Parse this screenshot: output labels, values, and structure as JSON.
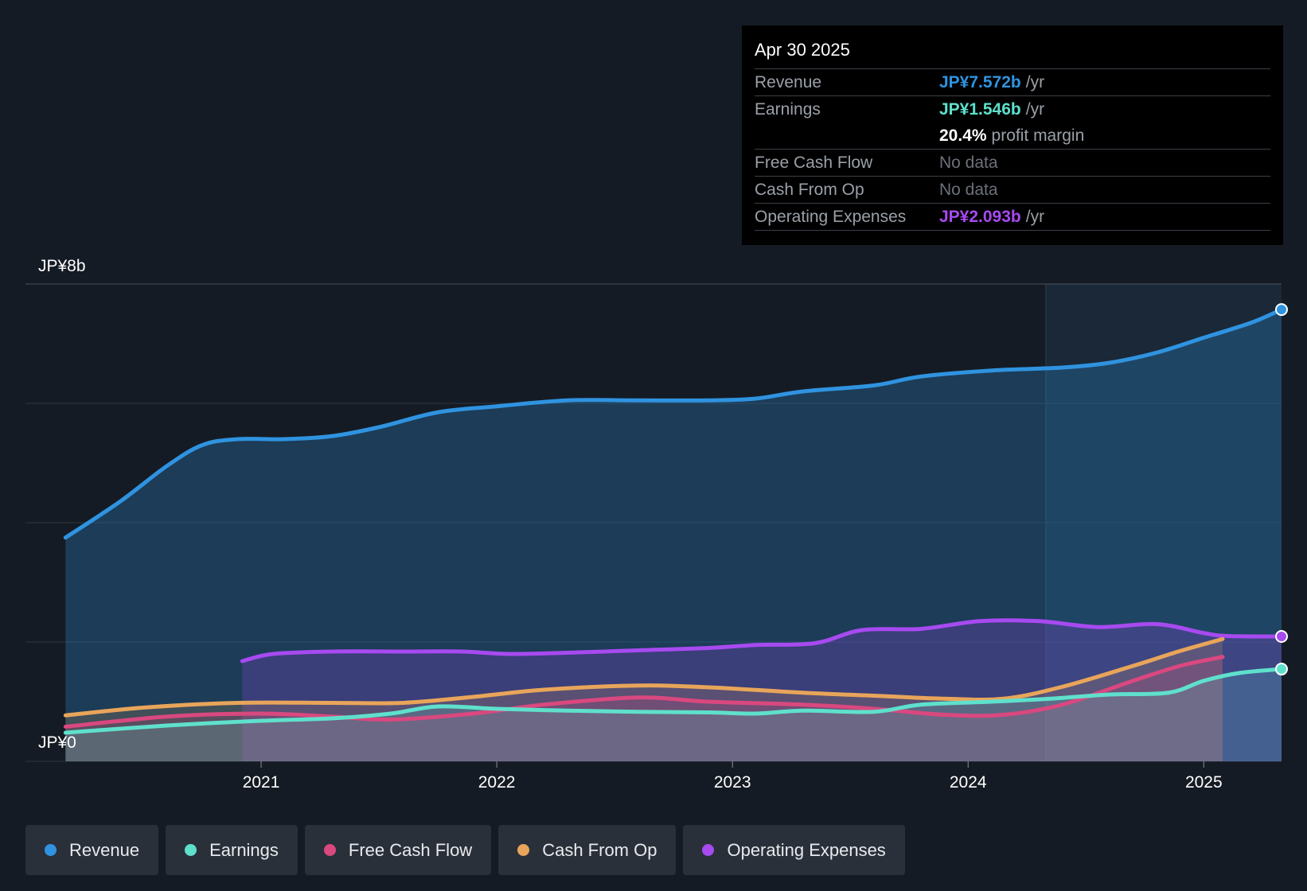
{
  "tooltip": {
    "date": "Apr 30 2025",
    "rows": [
      {
        "label": "Revenue",
        "value": "JP¥7.572b",
        "unit": "/yr",
        "color": "#2f93e0"
      },
      {
        "label": "Earnings",
        "value": "JP¥1.546b",
        "unit": "/yr",
        "color": "#5fe0cc"
      },
      {
        "label": "",
        "value": "20.4%",
        "unit": "profit margin",
        "color": "#ffffff"
      },
      {
        "label": "Free Cash Flow",
        "value": "No data"
      },
      {
        "label": "Cash From Op",
        "value": "No data"
      },
      {
        "label": "Operating Expenses",
        "value": "JP¥2.093b",
        "unit": "/yr",
        "color": "#a74af0"
      }
    ]
  },
  "legend": [
    {
      "label": "Revenue",
      "color": "#2f93e0"
    },
    {
      "label": "Earnings",
      "color": "#5fe0cc"
    },
    {
      "label": "Free Cash Flow",
      "color": "#d9487f"
    },
    {
      "label": "Cash From Op",
      "color": "#e8a55a"
    },
    {
      "label": "Operating Expenses",
      "color": "#a74af0"
    }
  ],
  "chart_data": {
    "type": "area",
    "currency": "JPY",
    "y_top_label": "JP¥8b",
    "y_bottom_label": "JP¥0",
    "ylim": [
      0,
      8
    ],
    "xlim": [
      2020.0,
      2025.33
    ],
    "x_ticks": [
      "2021",
      "2022",
      "2023",
      "2024",
      "2025"
    ],
    "x_tick_values": [
      2021,
      2022,
      2023,
      2024,
      2025
    ],
    "grid": true,
    "forecast_start": 2024.33,
    "series": [
      {
        "name": "Revenue",
        "color": "#2f93e0",
        "points": [
          [
            2020.17,
            3.75
          ],
          [
            2020.4,
            4.35
          ],
          [
            2020.6,
            4.95
          ],
          [
            2020.75,
            5.3
          ],
          [
            2020.9,
            5.4
          ],
          [
            2021.1,
            5.4
          ],
          [
            2021.3,
            5.45
          ],
          [
            2021.5,
            5.6
          ],
          [
            2021.75,
            5.85
          ],
          [
            2022.0,
            5.95
          ],
          [
            2022.3,
            6.05
          ],
          [
            2022.6,
            6.05
          ],
          [
            2022.9,
            6.05
          ],
          [
            2023.1,
            6.08
          ],
          [
            2023.3,
            6.2
          ],
          [
            2023.6,
            6.3
          ],
          [
            2023.8,
            6.45
          ],
          [
            2024.1,
            6.55
          ],
          [
            2024.4,
            6.6
          ],
          [
            2024.6,
            6.68
          ],
          [
            2024.8,
            6.85
          ],
          [
            2025.0,
            7.1
          ],
          [
            2025.2,
            7.35
          ],
          [
            2025.33,
            7.572
          ]
        ]
      },
      {
        "name": "Operating Expenses",
        "color": "#a74af0",
        "points": [
          [
            2020.92,
            1.68
          ],
          [
            2021.05,
            1.8
          ],
          [
            2021.3,
            1.84
          ],
          [
            2021.6,
            1.84
          ],
          [
            2021.85,
            1.84
          ],
          [
            2022.05,
            1.8
          ],
          [
            2022.3,
            1.82
          ],
          [
            2022.6,
            1.86
          ],
          [
            2022.9,
            1.9
          ],
          [
            2023.1,
            1.95
          ],
          [
            2023.35,
            1.98
          ],
          [
            2023.55,
            2.2
          ],
          [
            2023.8,
            2.22
          ],
          [
            2024.05,
            2.35
          ],
          [
            2024.3,
            2.35
          ],
          [
            2024.55,
            2.25
          ],
          [
            2024.8,
            2.3
          ],
          [
            2025.0,
            2.15
          ],
          [
            2025.1,
            2.1
          ],
          [
            2025.33,
            2.093
          ]
        ]
      },
      {
        "name": "Cash From Op",
        "color": "#e8a55a",
        "points": [
          [
            2020.17,
            0.77
          ],
          [
            2020.5,
            0.9
          ],
          [
            2020.9,
            0.98
          ],
          [
            2021.3,
            0.98
          ],
          [
            2021.6,
            0.98
          ],
          [
            2021.9,
            1.08
          ],
          [
            2022.2,
            1.2
          ],
          [
            2022.6,
            1.27
          ],
          [
            2022.9,
            1.24
          ],
          [
            2023.3,
            1.15
          ],
          [
            2023.6,
            1.1
          ],
          [
            2023.9,
            1.05
          ],
          [
            2024.15,
            1.05
          ],
          [
            2024.4,
            1.25
          ],
          [
            2024.7,
            1.6
          ],
          [
            2024.9,
            1.85
          ],
          [
            2025.08,
            2.05
          ]
        ]
      },
      {
        "name": "Free Cash Flow",
        "color": "#d9487f",
        "points": [
          [
            2020.17,
            0.58
          ],
          [
            2020.6,
            0.75
          ],
          [
            2021.0,
            0.8
          ],
          [
            2021.3,
            0.75
          ],
          [
            2021.55,
            0.7
          ],
          [
            2021.9,
            0.8
          ],
          [
            2022.2,
            0.95
          ],
          [
            2022.6,
            1.07
          ],
          [
            2022.9,
            1.0
          ],
          [
            2023.3,
            0.95
          ],
          [
            2023.6,
            0.88
          ],
          [
            2023.9,
            0.78
          ],
          [
            2024.15,
            0.78
          ],
          [
            2024.4,
            0.95
          ],
          [
            2024.7,
            1.35
          ],
          [
            2024.9,
            1.6
          ],
          [
            2025.08,
            1.75
          ]
        ]
      },
      {
        "name": "Earnings",
        "color": "#5fe0cc",
        "points": [
          [
            2020.17,
            0.48
          ],
          [
            2020.6,
            0.6
          ],
          [
            2021.0,
            0.68
          ],
          [
            2021.3,
            0.72
          ],
          [
            2021.55,
            0.8
          ],
          [
            2021.75,
            0.92
          ],
          [
            2022.0,
            0.88
          ],
          [
            2022.3,
            0.85
          ],
          [
            2022.6,
            0.83
          ],
          [
            2022.9,
            0.82
          ],
          [
            2023.1,
            0.8
          ],
          [
            2023.3,
            0.85
          ],
          [
            2023.6,
            0.83
          ],
          [
            2023.8,
            0.95
          ],
          [
            2024.1,
            1.0
          ],
          [
            2024.35,
            1.05
          ],
          [
            2024.6,
            1.12
          ],
          [
            2024.85,
            1.15
          ],
          [
            2025.0,
            1.35
          ],
          [
            2025.15,
            1.48
          ],
          [
            2025.33,
            1.546
          ]
        ]
      }
    ]
  }
}
